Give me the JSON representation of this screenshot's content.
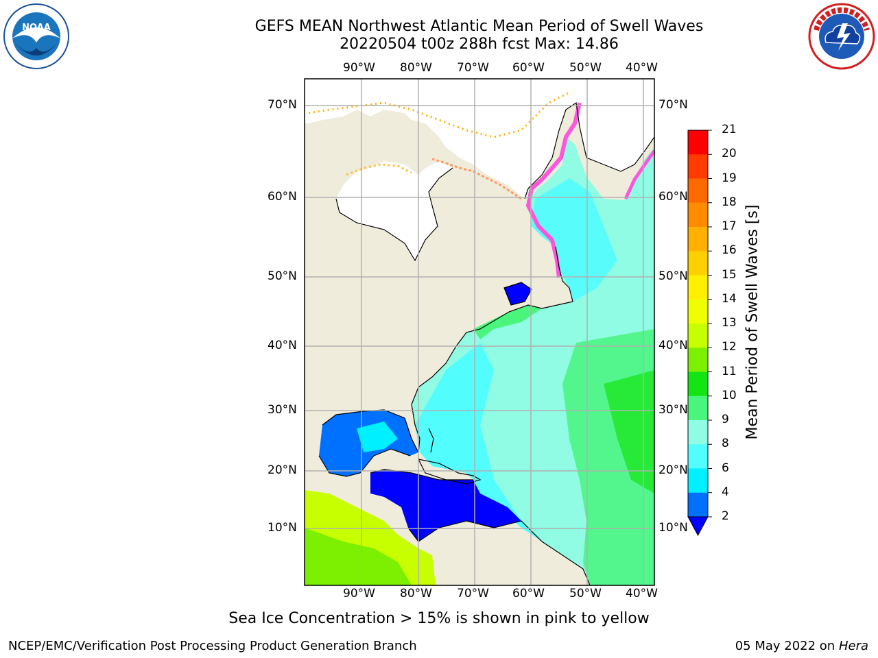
{
  "header": {
    "title_line1": "GEFS MEAN Northwest Atlantic Mean Period of Swell Waves",
    "title_line2": "20220504 t00z 288h fcst   Max: 14.86"
  },
  "logos": {
    "noaa": {
      "text": "NOAA",
      "ring_text": "NATIONAL OCEANIC AND ATMOSPHERIC ADMINISTRATION · U.S. DEPARTMENT OF COMMERCE"
    },
    "nws": {
      "ring_text": "NATIONAL WEATHER SERVICE"
    }
  },
  "map": {
    "lon_labels": [
      "90°W",
      "80°W",
      "70°W",
      "60°W",
      "50°W",
      "40°W"
    ],
    "lat_labels": [
      "70°N",
      "60°N",
      "50°N",
      "40°N",
      "30°N",
      "20°N",
      "10°N"
    ],
    "colors": {
      "land": "#efecdc",
      "ice_free_white": "#ffffff",
      "grid": "#b0b0b0",
      "coast": "#000000"
    }
  },
  "colorbar": {
    "label": "Mean Period of Swell Waves [s]",
    "ticks": [
      "21",
      "20",
      "19",
      "18",
      "17",
      "16",
      "15",
      "14",
      "13",
      "12",
      "11",
      "10",
      "9",
      "8",
      "6",
      "4",
      "2"
    ],
    "colors": [
      "#ff0000",
      "#ff3b00",
      "#ff6a00",
      "#ff8c00",
      "#ffb000",
      "#ffd000",
      "#fff000",
      "#f0ff00",
      "#c8ff00",
      "#7cf000",
      "#14e414",
      "#49f57d",
      "#8ffce3",
      "#52fdfd",
      "#00f0ff",
      "#0070ff"
    ],
    "under_color": "#0000ff"
  },
  "caption": "Sea Ice Concentration > 15% is shown in pink to yellow",
  "footer": {
    "left": "NCEP/EMC/Verification Post Processing Product Generation Branch",
    "right_date": "05 May 2022 on",
    "right_host": "Hera"
  }
}
